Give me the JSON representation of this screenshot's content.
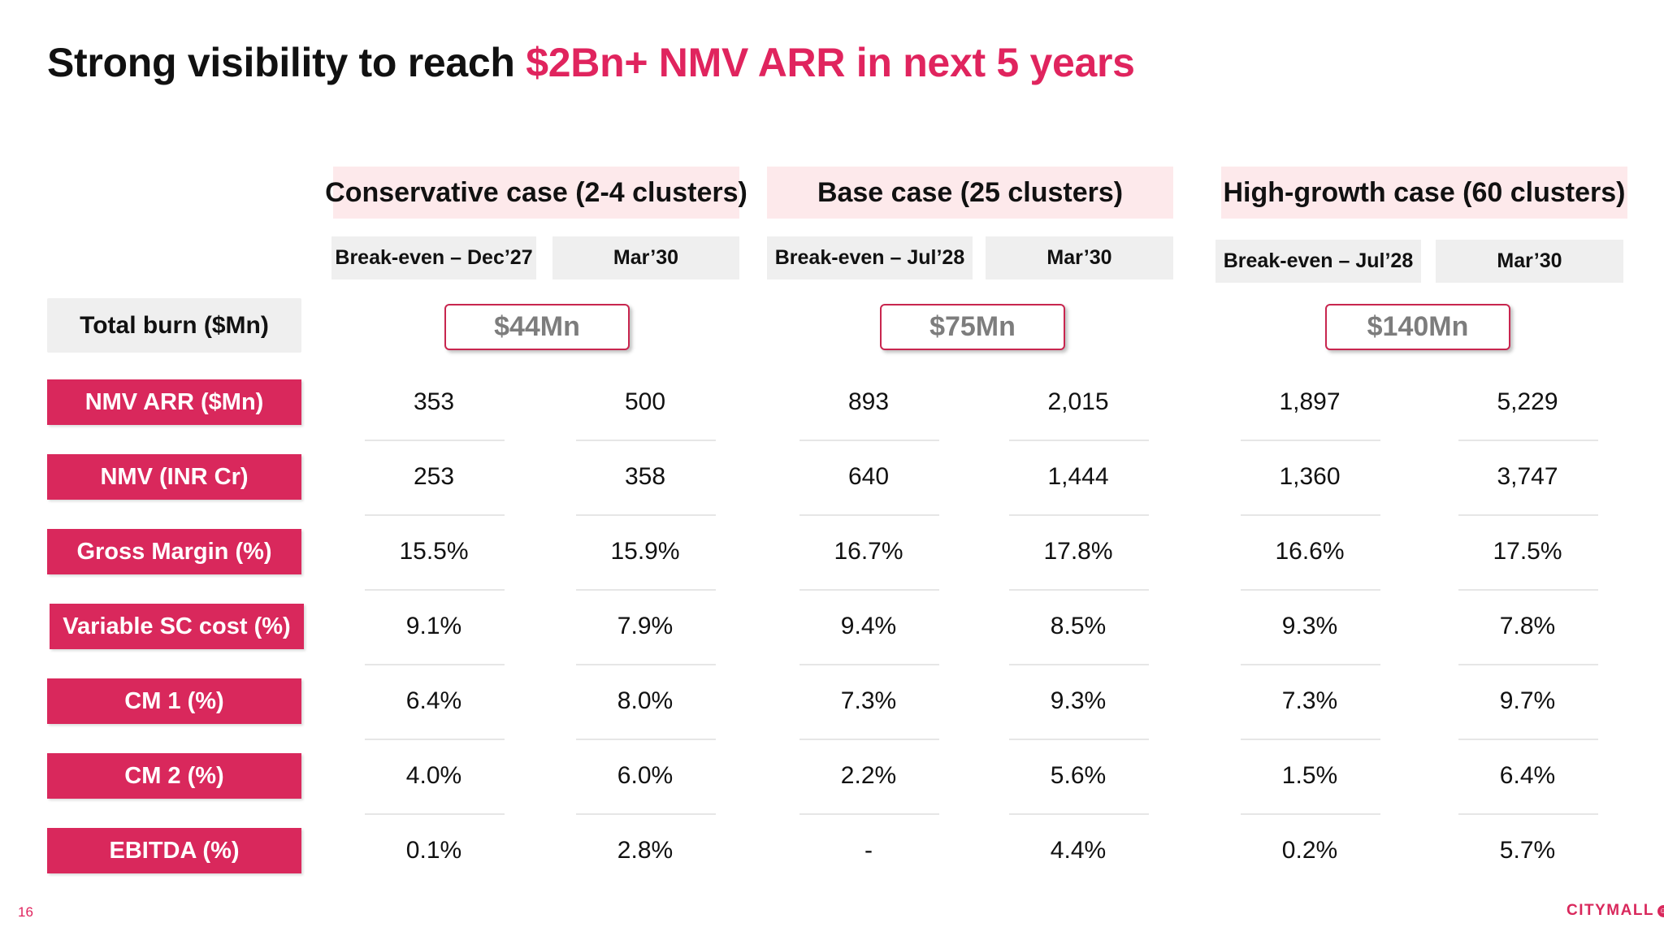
{
  "title": {
    "prefix": "Strong visibility to reach ",
    "accent": "$2Bn+ NMV ARR in next 5 years"
  },
  "cases": [
    {
      "header": "Conservative case (2-4 clusters)",
      "sub": [
        "Break-even – Dec’27",
        "Mar’30"
      ],
      "burn": "$44Mn"
    },
    {
      "header": "Base case (25 clusters)",
      "sub": [
        "Break-even – Jul’28",
        "Mar’30"
      ],
      "burn": "$75Mn"
    },
    {
      "header": "High-growth case (60 clusters)",
      "sub": [
        "Break-even – Jul’28",
        "Mar’30"
      ],
      "burn": "$140Mn"
    }
  ],
  "burn_label": "Total burn ($Mn)",
  "rows": [
    {
      "label": "NMV ARR ($Mn)",
      "values": [
        "353",
        "500",
        "893",
        "2,015",
        "1,897",
        "5,229"
      ]
    },
    {
      "label": "NMV (INR Cr)",
      "values": [
        "253",
        "358",
        "640",
        "1,444",
        "1,360",
        "3,747"
      ]
    },
    {
      "label": "Gross Margin (%)",
      "values": [
        "15.5%",
        "15.9%",
        "16.7%",
        "17.8%",
        "16.6%",
        "17.5%"
      ]
    },
    {
      "label": "Variable SC cost (%)",
      "values": [
        "9.1%",
        "7.9%",
        "9.4%",
        "8.5%",
        "9.3%",
        "7.8%"
      ]
    },
    {
      "label": "CM 1 (%)",
      "values": [
        "6.4%",
        "8.0%",
        "7.3%",
        "9.3%",
        "7.3%",
        "9.7%"
      ]
    },
    {
      "label": "CM 2 (%)",
      "values": [
        "4.0%",
        "6.0%",
        "2.2%",
        "5.6%",
        "1.5%",
        "6.4%"
      ]
    },
    {
      "label": "EBITDA (%)",
      "values": [
        "0.1%",
        "2.8%",
        "-",
        "4.4%",
        "0.2%",
        "5.7%"
      ]
    }
  ],
  "footer": {
    "page_number": "16",
    "logo_text": "CITYMALL"
  },
  "colors": {
    "accent": "#e0245e",
    "label_bg": "#d9285c",
    "case_header_bg": "#fde9eb",
    "sub_header_bg": "#efefef"
  }
}
